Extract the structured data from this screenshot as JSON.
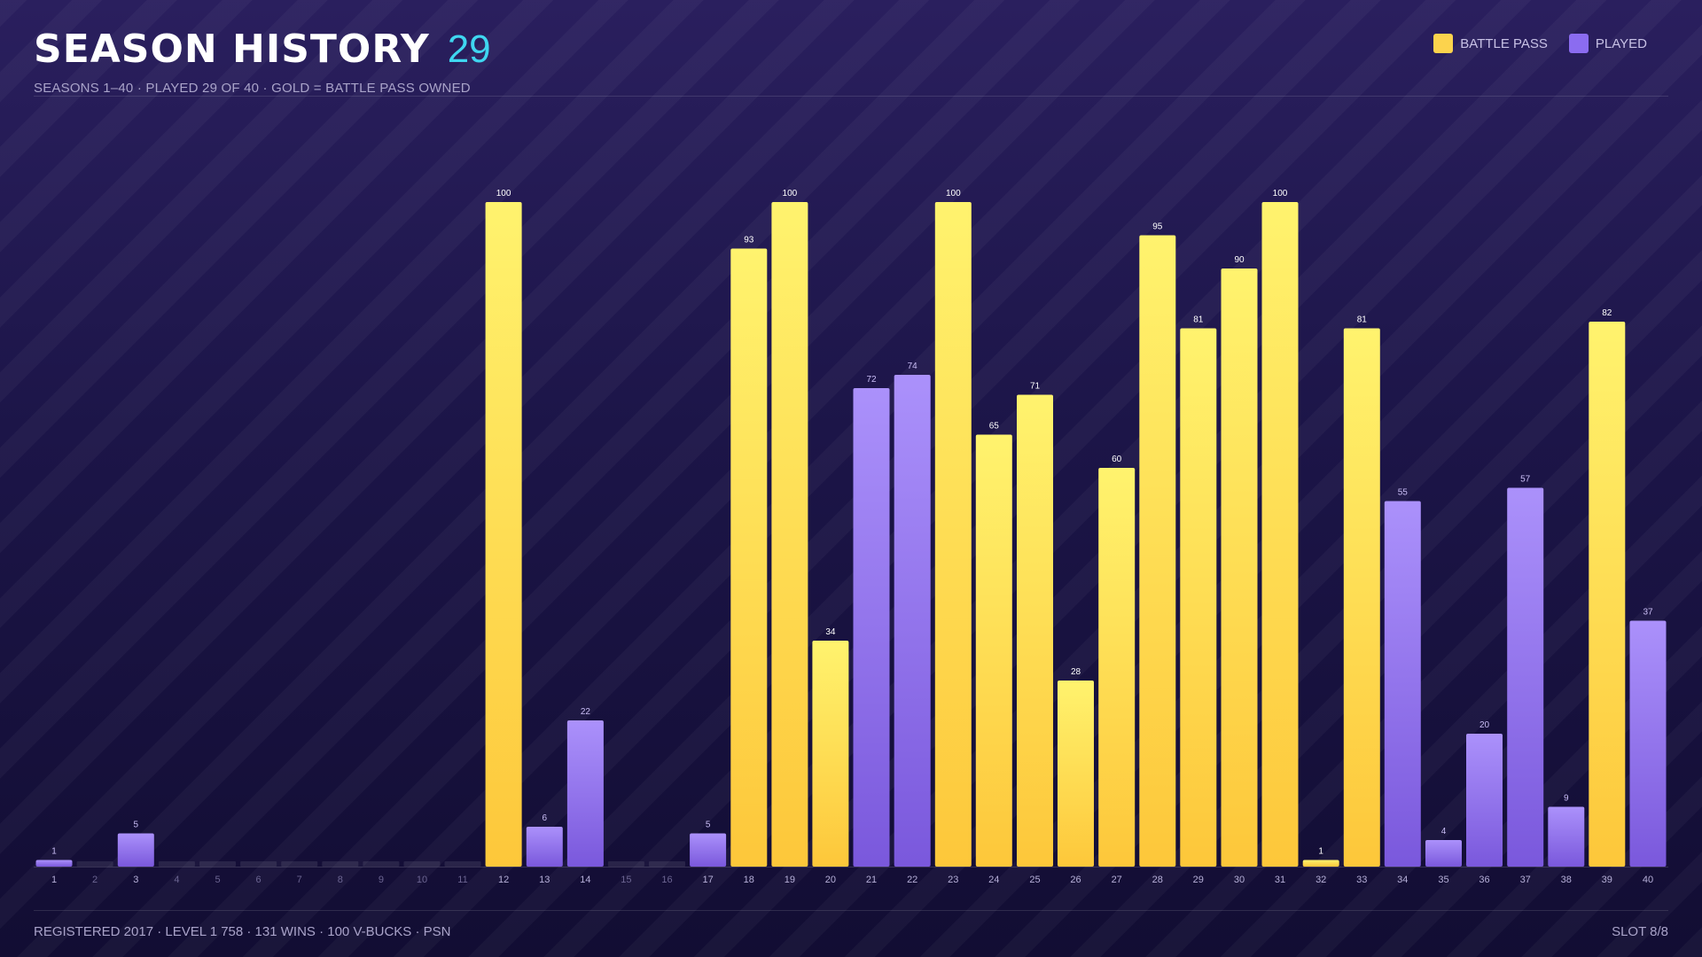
{
  "header": {
    "title": "SEASON HISTORY",
    "count": "29",
    "subtitle": "SEASONS 1–40  ·  PLAYED 29 OF 40  ·  GOLD = BATTLE PASS OWNED"
  },
  "legend": {
    "battle_pass": "BATTLE PASS",
    "played": "PLAYED"
  },
  "footer": {
    "info": "REGISTERED 2017  ·  LEVEL 1 758  ·  131 WINS  ·  100 V-BUCKS  ·  PSN",
    "slot": "SLOT 8/8"
  },
  "colors": {
    "battle_pass": "#fcd34d",
    "played": "#8b6cf0",
    "accent": "#3fd6f0"
  },
  "chart_data": {
    "type": "bar",
    "categories": [
      "1",
      "2",
      "3",
      "4",
      "5",
      "6",
      "7",
      "8",
      "9",
      "10",
      "11",
      "12",
      "13",
      "14",
      "15",
      "16",
      "17",
      "18",
      "19",
      "20",
      "21",
      "22",
      "23",
      "24",
      "25",
      "26",
      "27",
      "28",
      "29",
      "30",
      "31",
      "32",
      "33",
      "34",
      "35",
      "36",
      "37",
      "38",
      "39",
      "40"
    ],
    "values": [
      1,
      0,
      5,
      0,
      0,
      0,
      0,
      0,
      0,
      0,
      0,
      100,
      6,
      22,
      0,
      0,
      5,
      93,
      100,
      34,
      72,
      74,
      100,
      65,
      71,
      28,
      60,
      95,
      81,
      90,
      100,
      1,
      81,
      55,
      4,
      20,
      57,
      9,
      82,
      37
    ],
    "battle_pass": [
      false,
      false,
      false,
      false,
      false,
      false,
      false,
      false,
      false,
      false,
      false,
      true,
      false,
      false,
      false,
      false,
      false,
      true,
      true,
      true,
      false,
      false,
      true,
      true,
      true,
      true,
      true,
      true,
      true,
      true,
      true,
      true,
      true,
      false,
      false,
      false,
      false,
      false,
      true,
      false
    ],
    "ylim": [
      0,
      100
    ],
    "legend_position": "top-right",
    "grid": false
  }
}
